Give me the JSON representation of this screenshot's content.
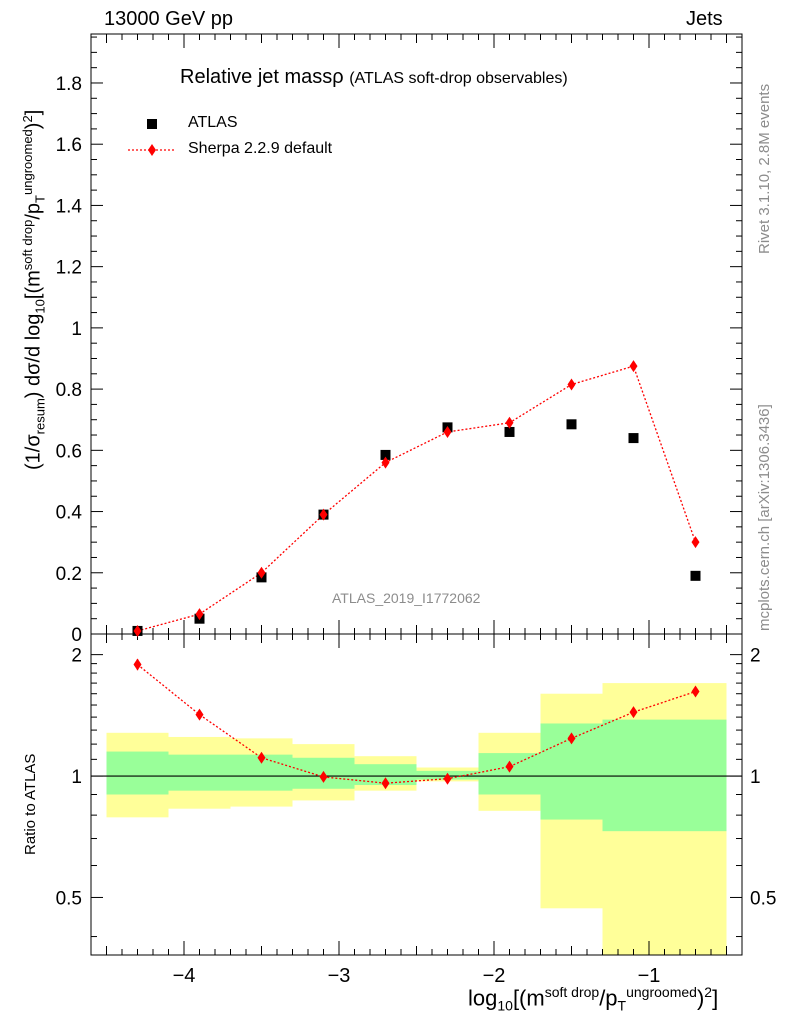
{
  "header": {
    "left": "13000 GeV pp",
    "right": "Jets"
  },
  "side_labels": {
    "rivet": "Rivet 3.1.10,  2.8M events",
    "mcplots": "mcplots.cern.ch [arXiv:1306.3436]"
  },
  "plot_title": {
    "main": "Relative jet massρ",
    "sub": "(ATLAS soft-drop observables)"
  },
  "watermark": "ATLAS_2019_I1772062",
  "legend": {
    "atlas": "ATLAS",
    "sherpa": "Sherpa 2.2.9 default"
  },
  "axes": {
    "ylabel_top": {
      "a": "(1/σ",
      "a_sub": "resum",
      "b": ") dσ/d log",
      "b_sub": "10",
      "c": "[(m",
      "c_sup": "soft drop",
      "d": "/p",
      "d_sub": "T",
      "d_sup": "ungroomed",
      "e": ")",
      "e_sup": "2",
      "f": "]"
    },
    "ylabel_bottom": "Ratio to ATLAS",
    "xlabel": {
      "a": "log",
      "a_sub": "10",
      "b": "[(m",
      "b_sup": "soft drop",
      "c": "/p",
      "c_sub": "T",
      "c_sup": "ungroomed",
      "d": ")",
      "d_sup": "2",
      "e": "]"
    }
  },
  "colors": {
    "atlas": "#000000",
    "sherpa": "#ff0000",
    "band_inner": "#99ff99",
    "band_outer": "#ffff99",
    "side_text": "#8c8c8c"
  },
  "chart_data": [
    {
      "type": "scatter",
      "panel": "main",
      "xlim": [
        -4.6,
        -0.4
      ],
      "ylim": [
        0,
        1.96
      ],
      "y_ticks": [
        0,
        0.2,
        0.4,
        0.6,
        0.8,
        1,
        1.2,
        1.4,
        1.6,
        1.8
      ],
      "y_tick_labels": [
        "0",
        "0.2",
        "0.4",
        "0.6",
        "0.8",
        "1",
        "1.2",
        "1.4",
        "1.6",
        "1.8"
      ],
      "x_ticks": [
        -4,
        -3,
        -2,
        -1
      ],
      "series": [
        {
          "name": "ATLAS",
          "marker": "square",
          "x": [
            -4.3,
            -3.9,
            -3.5,
            -3.1,
            -2.7,
            -2.3,
            -1.9,
            -1.5,
            -1.1,
            -0.7
          ],
          "y": [
            0.01,
            0.05,
            0.185,
            0.39,
            0.585,
            0.675,
            0.66,
            0.685,
            0.64,
            0.19
          ]
        },
        {
          "name": "Sherpa 2.2.9 default",
          "marker": "diamond",
          "x": [
            -4.3,
            -3.9,
            -3.5,
            -3.1,
            -2.7,
            -2.3,
            -1.9,
            -1.5,
            -1.1,
            -0.7
          ],
          "y": [
            0.01,
            0.065,
            0.2,
            0.39,
            0.56,
            0.66,
            0.69,
            0.815,
            0.875,
            0.3
          ]
        }
      ]
    },
    {
      "type": "line",
      "panel": "ratio",
      "xlim": [
        -4.6,
        -0.4
      ],
      "ylim": [
        0.36,
        2.25
      ],
      "y_scale": "log",
      "y_ticks": [
        0.5,
        1,
        2
      ],
      "y_tick_labels": [
        "0.5",
        "1",
        "2"
      ],
      "x_ticks": [
        -4,
        -3,
        -2,
        -1
      ],
      "x_tick_labels": [
        "−4",
        "−3",
        "−2",
        "−1"
      ],
      "bins": [
        [
          -4.5,
          -4.1
        ],
        [
          -4.1,
          -3.7
        ],
        [
          -3.7,
          -3.3
        ],
        [
          -3.3,
          -2.9
        ],
        [
          -2.9,
          -2.5
        ],
        [
          -2.5,
          -2.1
        ],
        [
          -2.1,
          -1.7
        ],
        [
          -1.7,
          -1.3
        ],
        [
          -1.3,
          -0.9
        ],
        [
          -0.9,
          -0.5
        ]
      ],
      "band_inner": [
        [
          0.9,
          1.15
        ],
        [
          0.92,
          1.13
        ],
        [
          0.92,
          1.13
        ],
        [
          0.93,
          1.11
        ],
        [
          0.95,
          1.07
        ],
        [
          0.98,
          1.03
        ],
        [
          0.9,
          1.14
        ],
        [
          0.78,
          1.35
        ],
        [
          0.73,
          1.38
        ],
        [
          0.73,
          1.38
        ]
      ],
      "band_outer": [
        [
          0.79,
          1.28
        ],
        [
          0.83,
          1.25
        ],
        [
          0.84,
          1.24
        ],
        [
          0.87,
          1.2
        ],
        [
          0.92,
          1.12
        ],
        [
          0.97,
          1.05
        ],
        [
          0.82,
          1.28
        ],
        [
          0.47,
          1.6
        ],
        [
          0.36,
          1.7
        ],
        [
          0.36,
          1.7
        ]
      ],
      "series": [
        {
          "name": "Sherpa 2.2.9 default",
          "x": [
            -4.3,
            -3.9,
            -3.5,
            -3.1,
            -2.7,
            -2.3,
            -1.9,
            -1.5,
            -1.1,
            -0.7
          ],
          "y": [
            1.89,
            1.42,
            1.11,
            0.995,
            0.96,
            0.985,
            1.055,
            1.24,
            1.44,
            1.62
          ],
          "err": [
            0.06,
            0.02,
            0.015,
            0.01,
            0.01,
            0.01,
            0.01,
            0.015,
            0.02,
            0.02
          ]
        }
      ]
    }
  ]
}
